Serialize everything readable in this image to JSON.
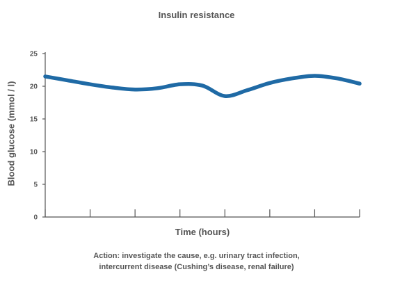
{
  "chart_data": {
    "type": "line",
    "title": "Insulin resistance",
    "ylabel": "Blood glucose (mmol / l)",
    "xlabel": "Time (hours)",
    "ylim": [
      0,
      25
    ],
    "yticks": [
      0,
      5,
      10,
      15,
      20,
      25
    ],
    "xlim": [
      0,
      7
    ],
    "xticks": [
      0,
      1,
      2,
      3,
      4,
      5,
      6,
      7
    ],
    "x_tick_labels_shown": false,
    "grid": false,
    "series": [
      {
        "color": "#1f6aa5",
        "x": [
          0,
          0.5,
          1,
          1.5,
          2,
          2.5,
          3,
          3.5,
          4,
          4.5,
          5,
          5.5,
          6,
          6.5,
          7
        ],
        "values": [
          21.5,
          20.9,
          20.3,
          19.8,
          19.5,
          19.7,
          20.3,
          20.1,
          18.5,
          19.4,
          20.5,
          21.2,
          21.6,
          21.2,
          20.4
        ]
      }
    ]
  },
  "note": {
    "line1": "Action: investigate the cause, e.g. urinary tract infection,",
    "line2": "intercurrent disease (Cushing’s disease, renal failure)"
  }
}
